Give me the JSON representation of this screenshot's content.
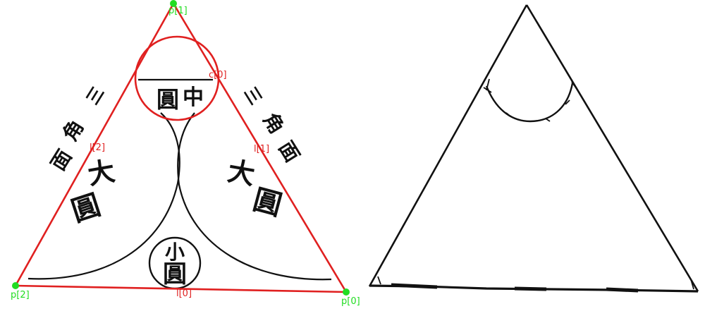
{
  "colors": {
    "background": "#ffffff",
    "annotation": "#e02020",
    "point": "#22dd22",
    "ink": "#111111"
  },
  "annotations": {
    "points": [
      "p[0]",
      "p[1]",
      "p[2]"
    ],
    "lines": [
      "l[0]",
      "l[1]",
      "l[2]"
    ],
    "circles": [
      "c[0]"
    ]
  },
  "scan": {
    "side_left": [
      "三",
      "角",
      "面"
    ],
    "side_right": [
      "三",
      "角",
      "面"
    ],
    "middle_circle": [
      "圓",
      "中"
    ],
    "big_circle_left": [
      "大",
      "圓"
    ],
    "big_circle_right": [
      "大",
      "圓"
    ],
    "small_circle": [
      "小",
      "圓"
    ]
  }
}
